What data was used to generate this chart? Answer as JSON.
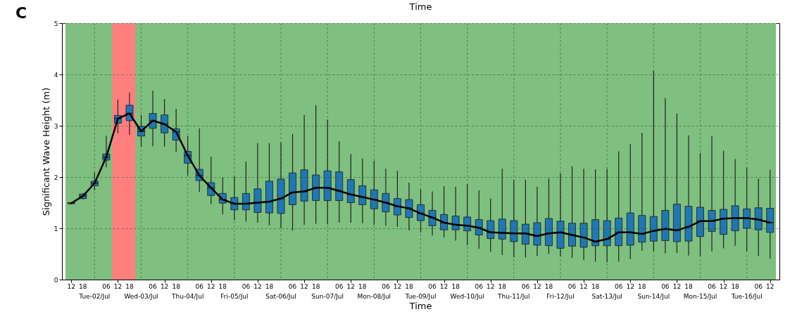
{
  "chart_data": {
    "type": "box",
    "title": "C",
    "xlabel": "Time",
    "ylabel": "Significant Wave Height (m)",
    "annotations": [
      "Time",
      "Tue-02/Jul",
      "Wed-03/Jul",
      "Thu-04/Jul",
      "Fri-05/Jul",
      "Sat-06/Jul",
      "Sun-07/Jul",
      "Mon-08/Jul",
      "Tue-09/Jul",
      "Wed-10/Jul",
      "Thu-11/Jul",
      "Fri-12/Jul",
      "Sat-13/Jul",
      "Sun-14/Jul",
      "Mon-15/Jul",
      "Tue-16/Jul"
    ],
    "x": [
      "--07-01T12:00",
      "--07-01T18:00",
      "--07-02T00:00",
      "--07-02T06:00",
      "--07-02T12:00",
      "--07-02T18:00",
      "--07-03T00:00",
      "--07-03T06:00",
      "--07-03T12:00",
      "--07-03T18:00",
      "--07-04T00:00",
      "--07-04T06:00",
      "--07-04T12:00",
      "--07-04T18:00",
      "--07-05T00:00",
      "--07-05T06:00",
      "--07-05T12:00",
      "--07-05T18:00",
      "--07-06T00:00",
      "--07-06T06:00",
      "--07-06T12:00",
      "--07-06T18:00",
      "--07-07T00:00",
      "--07-07T06:00",
      "--07-07T12:00",
      "--07-07T18:00",
      "--07-08T00:00",
      "--07-08T06:00",
      "--07-08T12:00",
      "--07-08T18:00",
      "--07-09T00:00",
      "--07-09T06:00",
      "--07-09T12:00",
      "--07-09T18:00",
      "--07-10T00:00",
      "--07-10T06:00",
      "--07-10T12:00",
      "--07-10T18:00",
      "--07-11T00:00",
      "--07-11T06:00",
      "--07-11T12:00",
      "--07-11T18:00",
      "--07-12T00:00",
      "--07-12T06:00",
      "--07-12T12:00",
      "--07-12T18:00",
      "--07-13T00:00",
      "--07-13T06:00",
      "--07-13T12:00",
      "--07-13T18:00",
      "--07-14T00:00",
      "--07-14T06:00",
      "--07-14T12:00",
      "--07-14T18:00",
      "--07-15T00:00",
      "--07-15T06:00",
      "--07-15T12:00",
      "--07-15T18:00",
      "--07-16T00:00",
      "--07-16T06:00",
      "--07-16T12:00"
    ],
    "xlim": [
      "--07-01T09:00",
      "--07-16T15:00"
    ],
    "xticks": [
      {
        "value": "--07-01T12:00",
        "label": "12"
      },
      {
        "value": "--07-01T18:00",
        "label": "18"
      },
      {
        "value": "--07-02T00:00",
        "label": null
      },
      {
        "value": "--07-02T06:00",
        "label": "06"
      },
      {
        "value": "--07-02T12:00",
        "label": "12"
      },
      {
        "value": "--07-02T18:00",
        "label": "18"
      },
      {
        "value": "--07-03T00:00",
        "label": null
      },
      {
        "value": "--07-03T06:00",
        "label": "06"
      },
      {
        "value": "--07-03T12:00",
        "label": "12"
      },
      {
        "value": "--07-03T18:00",
        "label": "18"
      },
      {
        "value": "--07-04T00:00",
        "label": null
      },
      {
        "value": "--07-04T06:00",
        "label": "06"
      },
      {
        "value": "--07-04T12:00",
        "label": "12"
      },
      {
        "value": "--07-04T18:00",
        "label": "18"
      },
      {
        "value": "--07-05T00:00",
        "label": null
      },
      {
        "value": "--07-05T06:00",
        "label": "06"
      },
      {
        "value": "--07-05T12:00",
        "label": "12"
      },
      {
        "value": "--07-05T18:00",
        "label": "18"
      },
      {
        "value": "--07-06T00:00",
        "label": null
      },
      {
        "value": "--07-06T06:00",
        "label": "06"
      },
      {
        "value": "--07-06T12:00",
        "label": "12"
      },
      {
        "value": "--07-06T18:00",
        "label": "18"
      },
      {
        "value": "--07-07T00:00",
        "label": null
      },
      {
        "value": "--07-07T06:00",
        "label": "06"
      },
      {
        "value": "--07-07T12:00",
        "label": "12"
      },
      {
        "value": "--07-07T18:00",
        "label": "18"
      },
      {
        "value": "--07-08T00:00",
        "label": null
      },
      {
        "value": "--07-08T06:00",
        "label": "06"
      },
      {
        "value": "--07-08T12:00",
        "label": "12"
      },
      {
        "value": "--07-08T18:00",
        "label": "18"
      },
      {
        "value": "--07-09T00:00",
        "label": null
      },
      {
        "value": "--07-09T06:00",
        "label": "06"
      },
      {
        "value": "--07-09T12:00",
        "label": "12"
      },
      {
        "value": "--07-09T18:00",
        "label": "18"
      },
      {
        "value": "--07-10T00:00",
        "label": null
      },
      {
        "value": "--07-10T06:00",
        "label": "06"
      },
      {
        "value": "--07-10T12:00",
        "label": "12"
      },
      {
        "value": "--07-10T18:00",
        "label": "18"
      },
      {
        "value": "--07-11T00:00",
        "label": null
      },
      {
        "value": "--07-11T06:00",
        "label": "06"
      },
      {
        "value": "--07-11T12:00",
        "label": "12"
      },
      {
        "value": "--07-11T18:00",
        "label": "18"
      },
      {
        "value": "--07-12T00:00",
        "label": null
      },
      {
        "value": "--07-12T06:00",
        "label": "06"
      },
      {
        "value": "--07-12T12:00",
        "label": "12"
      },
      {
        "value": "--07-12T18:00",
        "label": "18"
      },
      {
        "value": "--07-13T00:00",
        "label": null
      },
      {
        "value": "--07-13T06:00",
        "label": "06"
      },
      {
        "value": "--07-13T12:00",
        "label": "12"
      },
      {
        "value": "--07-13T18:00",
        "label": "18"
      },
      {
        "value": "--07-14T00:00",
        "label": null
      },
      {
        "value": "--07-14T06:00",
        "label": "06"
      },
      {
        "value": "--07-14T12:00",
        "label": "12"
      },
      {
        "value": "--07-14T18:00",
        "label": "18"
      },
      {
        "value": "--07-15T00:00",
        "label": null
      },
      {
        "value": "--07-15T06:00",
        "label": "06"
      },
      {
        "value": "--07-15T12:00",
        "label": "12"
      },
      {
        "value": "--07-15T18:00",
        "label": "18"
      },
      {
        "value": "--07-16T00:00",
        "label": null
      },
      {
        "value": "--07-16T06:00",
        "label": "06"
      },
      {
        "value": "--07-16T12:00",
        "label": "12"
      }
    ],
    "ylim": [
      0,
      5
    ],
    "yticks": [
      0,
      1,
      2,
      3,
      4,
      5
    ],
    "grid": true,
    "bands": [
      {
        "axis": "x",
        "from": "--07-01T09:00",
        "to": "--07-16T15:00",
        "color": "#7fbf7f"
      },
      {
        "axis": "x",
        "from": "--07-02T09:00",
        "to": "--07-02T21:00",
        "color": "#ff7f7f"
      }
    ],
    "series": [
      {
        "type": "box",
        "color": "#1f77b4",
        "boxes": [
          {
            "low": 1.47,
            "q1": 1.48,
            "median": 1.49,
            "q3": 1.5,
            "high": 1.51
          },
          {
            "low": 1.56,
            "q1": 1.58,
            "median": 1.63,
            "q3": 1.67,
            "high": 1.69
          },
          {
            "low": 1.74,
            "q1": 1.83,
            "median": 1.88,
            "q3": 1.92,
            "high": 2.09
          },
          {
            "low": 2.19,
            "q1": 2.33,
            "median": 2.39,
            "q3": 2.45,
            "high": 2.8
          },
          {
            "low": 2.85,
            "q1": 3.05,
            "median": 3.14,
            "q3": 3.2,
            "high": 3.51
          },
          {
            "low": 2.82,
            "q1": 3.1,
            "median": 3.24,
            "q3": 3.4,
            "high": 3.65
          },
          {
            "low": 2.59,
            "q1": 2.8,
            "median": 2.89,
            "q3": 2.99,
            "high": 3.21
          },
          {
            "low": 2.6,
            "q1": 2.95,
            "median": 3.1,
            "q3": 3.24,
            "high": 3.68
          },
          {
            "low": 2.59,
            "q1": 2.86,
            "median": 3.03,
            "q3": 3.21,
            "high": 3.52
          },
          {
            "low": 2.49,
            "q1": 2.72,
            "median": 2.88,
            "q3": 2.94,
            "high": 3.33
          },
          {
            "low": 2.03,
            "q1": 2.27,
            "median": 2.42,
            "q3": 2.5,
            "high": 2.8
          },
          {
            "low": 1.71,
            "q1": 1.93,
            "median": 2.03,
            "q3": 2.15,
            "high": 2.95
          },
          {
            "low": 1.47,
            "q1": 1.64,
            "median": 1.79,
            "q3": 1.89,
            "high": 2.4
          },
          {
            "low": 1.27,
            "q1": 1.49,
            "median": 1.56,
            "q3": 1.68,
            "high": 1.99
          },
          {
            "low": 1.16,
            "q1": 1.36,
            "median": 1.48,
            "q3": 1.6,
            "high": 2.01
          },
          {
            "low": 1.13,
            "q1": 1.36,
            "median": 1.48,
            "q3": 1.68,
            "high": 2.3
          },
          {
            "low": 1.11,
            "q1": 1.31,
            "median": 1.5,
            "q3": 1.77,
            "high": 2.66
          },
          {
            "low": 1.06,
            "q1": 1.3,
            "median": 1.52,
            "q3": 1.92,
            "high": 2.66
          },
          {
            "low": 1.0,
            "q1": 1.29,
            "median": 1.58,
            "q3": 1.96,
            "high": 2.67
          },
          {
            "low": 0.95,
            "q1": 1.46,
            "median": 1.7,
            "q3": 2.08,
            "high": 2.84
          },
          {
            "low": 1.07,
            "q1": 1.53,
            "median": 1.72,
            "q3": 2.14,
            "high": 3.21
          },
          {
            "low": 1.09,
            "q1": 1.54,
            "median": 1.79,
            "q3": 2.04,
            "high": 3.4
          },
          {
            "low": 1.08,
            "q1": 1.54,
            "median": 1.79,
            "q3": 2.12,
            "high": 3.12
          },
          {
            "low": 1.11,
            "q1": 1.54,
            "median": 1.73,
            "q3": 2.1,
            "high": 2.7
          },
          {
            "low": 1.11,
            "q1": 1.5,
            "median": 1.66,
            "q3": 1.95,
            "high": 2.45
          },
          {
            "low": 1.1,
            "q1": 1.46,
            "median": 1.61,
            "q3": 1.83,
            "high": 2.36
          },
          {
            "low": 1.07,
            "q1": 1.38,
            "median": 1.56,
            "q3": 1.75,
            "high": 2.32
          },
          {
            "low": 1.05,
            "q1": 1.32,
            "median": 1.5,
            "q3": 1.68,
            "high": 2.16
          },
          {
            "low": 1.03,
            "q1": 1.26,
            "median": 1.43,
            "q3": 1.58,
            "high": 2.12
          },
          {
            "low": 0.96,
            "q1": 1.21,
            "median": 1.39,
            "q3": 1.56,
            "high": 1.89
          },
          {
            "low": 0.92,
            "q1": 1.15,
            "median": 1.29,
            "q3": 1.46,
            "high": 1.76
          },
          {
            "low": 0.86,
            "q1": 1.05,
            "median": 1.21,
            "q3": 1.35,
            "high": 1.72
          },
          {
            "low": 0.82,
            "q1": 0.97,
            "median": 1.11,
            "q3": 1.27,
            "high": 1.82
          },
          {
            "low": 0.76,
            "q1": 0.97,
            "median": 1.07,
            "q3": 1.24,
            "high": 1.81
          },
          {
            "low": 0.67,
            "q1": 0.95,
            "median": 1.05,
            "q3": 1.22,
            "high": 1.86
          },
          {
            "low": 0.6,
            "q1": 0.87,
            "median": 1.01,
            "q3": 1.17,
            "high": 1.74
          },
          {
            "low": 0.54,
            "q1": 0.8,
            "median": 0.92,
            "q3": 1.15,
            "high": 1.58
          },
          {
            "low": 0.48,
            "q1": 0.79,
            "median": 0.91,
            "q3": 1.18,
            "high": 2.16
          },
          {
            "low": 0.44,
            "q1": 0.74,
            "median": 0.9,
            "q3": 1.15,
            "high": 1.94
          },
          {
            "low": 0.43,
            "q1": 0.69,
            "median": 0.9,
            "q3": 1.08,
            "high": 1.95
          },
          {
            "low": 0.46,
            "q1": 0.67,
            "median": 0.85,
            "q3": 1.11,
            "high": 1.81
          },
          {
            "low": 0.5,
            "q1": 0.66,
            "median": 0.9,
            "q3": 1.19,
            "high": 1.97
          },
          {
            "low": 0.46,
            "q1": 0.61,
            "median": 0.92,
            "q3": 1.14,
            "high": 2.07
          },
          {
            "low": 0.42,
            "q1": 0.65,
            "median": 0.87,
            "q3": 1.1,
            "high": 2.21
          },
          {
            "low": 0.38,
            "q1": 0.63,
            "median": 0.82,
            "q3": 1.1,
            "high": 2.16
          },
          {
            "low": 0.35,
            "q1": 0.66,
            "median": 0.74,
            "q3": 1.17,
            "high": 2.15
          },
          {
            "low": 0.34,
            "q1": 0.66,
            "median": 0.79,
            "q3": 1.15,
            "high": 2.16
          },
          {
            "low": 0.35,
            "q1": 0.66,
            "median": 0.92,
            "q3": 1.2,
            "high": 2.5
          },
          {
            "low": 0.4,
            "q1": 0.67,
            "median": 0.92,
            "q3": 1.3,
            "high": 2.64
          },
          {
            "low": 0.56,
            "q1": 0.73,
            "median": 0.89,
            "q3": 1.25,
            "high": 2.86
          },
          {
            "low": 0.55,
            "q1": 0.75,
            "median": 0.95,
            "q3": 1.23,
            "high": 4.07
          },
          {
            "low": 0.51,
            "q1": 0.76,
            "median": 0.99,
            "q3": 1.35,
            "high": 3.54
          },
          {
            "low": 0.52,
            "q1": 0.74,
            "median": 0.96,
            "q3": 1.47,
            "high": 3.24
          },
          {
            "low": 0.47,
            "q1": 0.75,
            "median": 1.03,
            "q3": 1.43,
            "high": 2.81
          },
          {
            "low": 0.46,
            "q1": 0.84,
            "median": 1.14,
            "q3": 1.41,
            "high": 2.47
          },
          {
            "low": 0.55,
            "q1": 0.94,
            "median": 1.14,
            "q3": 1.35,
            "high": 2.8
          },
          {
            "low": 0.61,
            "q1": 0.88,
            "median": 1.19,
            "q3": 1.37,
            "high": 2.51
          },
          {
            "low": 0.66,
            "q1": 0.95,
            "median": 1.2,
            "q3": 1.44,
            "high": 2.35
          },
          {
            "low": 0.55,
            "q1": 1.0,
            "median": 1.2,
            "q3": 1.38,
            "high": 2.18
          },
          {
            "low": 0.46,
            "q1": 0.97,
            "median": 1.17,
            "q3": 1.4,
            "high": 1.97
          },
          {
            "low": 0.41,
            "q1": 0.92,
            "median": 1.11,
            "q3": 1.39,
            "high": 2.14
          }
        ]
      },
      {
        "type": "line",
        "color": "#000000",
        "values": [
          1.49,
          1.63,
          1.88,
          2.39,
          3.14,
          3.24,
          2.89,
          3.1,
          3.03,
          2.88,
          2.42,
          2.03,
          1.79,
          1.56,
          1.48,
          1.48,
          1.5,
          1.52,
          1.58,
          1.7,
          1.72,
          1.79,
          1.79,
          1.73,
          1.66,
          1.61,
          1.56,
          1.5,
          1.43,
          1.39,
          1.29,
          1.21,
          1.11,
          1.07,
          1.05,
          1.01,
          0.92,
          0.91,
          0.9,
          0.9,
          0.85,
          0.9,
          0.92,
          0.87,
          0.82,
          0.74,
          0.79,
          0.92,
          0.92,
          0.89,
          0.95,
          0.99,
          0.96,
          1.03,
          1.14,
          1.14,
          1.19,
          1.2,
          1.2,
          1.17,
          1.11
        ]
      }
    ]
  }
}
